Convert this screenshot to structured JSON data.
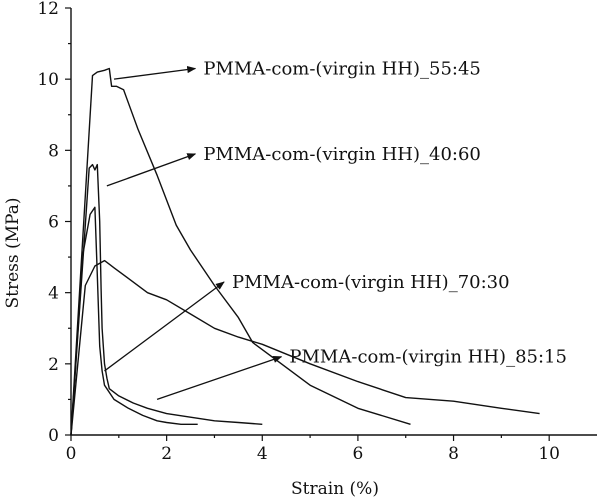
{
  "chart_data": {
    "type": "line",
    "title": "",
    "xlabel": "Strain (%)",
    "ylabel": "Stress (MPa)",
    "xlim": [
      0,
      11
    ],
    "ylim": [
      0,
      12
    ],
    "xticks": [
      0,
      2,
      4,
      6,
      8,
      10
    ],
    "yticks": [
      0,
      2,
      4,
      6,
      8,
      10,
      12
    ],
    "grid": false,
    "legend": "none",
    "series": [
      {
        "x": [
          0,
          0.45,
          0.55,
          0.7,
          0.8,
          0.85,
          0.95,
          1.1,
          1.4,
          1.8,
          2.2,
          2.5,
          3.0,
          3.5,
          3.8,
          4.2,
          5.0,
          6.0,
          7.1
        ],
        "y": [
          0,
          10.1,
          10.2,
          10.25,
          10.3,
          9.8,
          9.8,
          9.7,
          8.6,
          7.3,
          5.9,
          5.2,
          4.2,
          3.3,
          2.6,
          2.2,
          1.4,
          0.75,
          0.3
        ]
      },
      {
        "x": [
          0,
          0.38,
          0.45,
          0.5,
          0.55,
          0.6,
          0.63,
          0.65,
          0.7,
          0.75,
          0.8,
          1.0,
          1.3,
          1.6,
          2.0,
          2.5,
          3.0,
          3.5,
          4.0
        ],
        "y": [
          0,
          7.5,
          7.6,
          7.45,
          7.6,
          6.0,
          4.1,
          3.0,
          2.0,
          1.6,
          1.3,
          1.1,
          0.9,
          0.75,
          0.6,
          0.5,
          0.4,
          0.35,
          0.3
        ]
      },
      {
        "x": [
          0,
          0.3,
          0.5,
          0.7,
          0.8,
          0.9,
          1.2,
          1.6,
          2.0,
          2.5,
          3.0,
          3.5,
          4.0,
          5.0,
          6.0,
          7.0,
          8.0,
          9.0,
          9.8
        ],
        "y": [
          0,
          4.2,
          4.75,
          4.9,
          4.8,
          4.7,
          4.4,
          4.0,
          3.8,
          3.4,
          3.0,
          2.75,
          2.55,
          2.0,
          1.5,
          1.05,
          0.95,
          0.75,
          0.6
        ]
      },
      {
        "x": [
          0,
          0.25,
          0.4,
          0.5,
          0.55,
          0.6,
          0.65,
          0.7,
          0.9,
          1.2,
          1.5,
          1.8,
          2.0,
          2.3,
          2.65
        ],
        "y": [
          0,
          5.1,
          6.2,
          6.4,
          4.5,
          2.5,
          1.8,
          1.4,
          1.0,
          0.75,
          0.55,
          0.4,
          0.35,
          0.3,
          0.3
        ]
      }
    ],
    "annotations": [
      {
        "text": "PMMA-com-(virgin HH)_55:45",
        "arrow_from": [
          0.9,
          10.0
        ],
        "arrow_to": [
          2.6,
          10.3
        ]
      },
      {
        "text": "PMMA-com-(virgin HH)_40:60",
        "arrow_from": [
          0.75,
          7.0
        ],
        "arrow_to": [
          2.6,
          7.9
        ]
      },
      {
        "text": "PMMA-com-(virgin HH)_70:30",
        "arrow_from": [
          0.7,
          1.8
        ],
        "arrow_to": [
          3.2,
          4.3
        ]
      },
      {
        "text": "PMMA-com-(virgin HH)_85:15",
        "arrow_from": [
          1.8,
          1.0
        ],
        "arrow_to": [
          4.4,
          2.2
        ]
      }
    ]
  }
}
